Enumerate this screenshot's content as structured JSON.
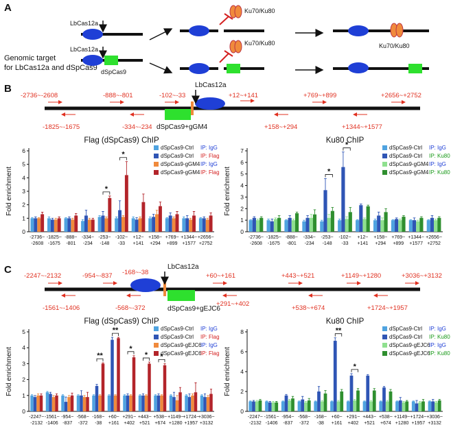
{
  "panel_a": {
    "label": "A",
    "target_text": [
      "Genomic target",
      "for LbCas12a and dSpCas9"
    ],
    "enzyme_labels": [
      "LbCas12a",
      "LbCas12a"
    ],
    "dcas_label": "dSpCas9",
    "ku_labels": [
      "Ku70/Ku80",
      "Ku70/Ku80",
      "Ku70/Ku80"
    ]
  },
  "panel_b": {
    "label": "B",
    "enzyme": "LbCas12a",
    "guide": "dSpCas9+gGM4",
    "regions_top": [
      "-2736~-2608",
      "-888~-801",
      "-102~-33",
      "+12~+141",
      "+769~+899",
      "+2656~+2752"
    ],
    "regions_bottom": [
      "-1825~-1675",
      "-334~-234",
      "+158~+294",
      "+1344~+1577"
    ]
  },
  "panel_c": {
    "label": "C",
    "enzyme": "LbCas12a",
    "guide": "dSpCas9+gEJC6",
    "regions_top": [
      "-2247~-2132",
      "-954~-837",
      "-168~-38",
      "+60~+161",
      "+443~+521",
      "+1149~+1280",
      "+3036~+3132"
    ],
    "regions_bottom": [
      "-1561~-1406",
      "-568~-372",
      "+291~+402",
      "+538~+674",
      "+1724~+1957"
    ]
  },
  "chart_data": [
    {
      "type": "bar",
      "title": "Flag (dSpCas9) ChIP",
      "y_label": "Fold enrichment",
      "categories": [
        "-2736~-2608",
        "-1825~-1675",
        "-888~-801",
        "-334~-234",
        "-253~-148",
        "-102~-33",
        "+12~+141",
        "+158~+294",
        "+769~+899",
        "+1344~+1577",
        "+2656~+2752"
      ],
      "series": [
        {
          "name": "dSpCas9-Ctrl",
          "ip": "IP: IgG",
          "ip_color": "#1f3fd6",
          "color": "#4fa3e0",
          "values": [
            1.0,
            1.0,
            1.0,
            0.8,
            1.1,
            1.0,
            1.0,
            1.0,
            1.0,
            1.0,
            1.0
          ],
          "errors": [
            0.05,
            0.1,
            0.05,
            0.1,
            0.1,
            0.1,
            0.1,
            0.1,
            0.05,
            0.1,
            0.05
          ]
        },
        {
          "name": "dSpCas9-Ctrl",
          "ip": "IP: Flag",
          "ip_color": "#d42020",
          "color": "#2f55b5",
          "values": [
            1.0,
            0.9,
            1.0,
            1.2,
            1.2,
            1.6,
            0.9,
            1.1,
            1.2,
            1.0,
            1.0
          ],
          "errors": [
            0.1,
            0.1,
            0.1,
            0.4,
            0.3,
            0.7,
            0.15,
            0.2,
            0.2,
            0.2,
            0.1
          ]
        },
        {
          "name": "dSpCas9-gGM4",
          "ip": "IP: IgG",
          "ip_color": "#1f3fd6",
          "color": "#f08a3c",
          "values": [
            1.0,
            0.9,
            0.9,
            0.9,
            1.0,
            1.1,
            1.0,
            1.3,
            1.0,
            0.9,
            0.9
          ],
          "errors": [
            0.05,
            0.1,
            0.1,
            0.1,
            0.1,
            0.1,
            0.1,
            0.3,
            0.1,
            0.1,
            0.1
          ]
        },
        {
          "name": "dSpCas9-gGM4",
          "ip": "IP: Flag",
          "ip_color": "#d42020",
          "color": "#b3242a",
          "values": [
            1.3,
            1.0,
            1.2,
            0.9,
            2.5,
            4.2,
            2.2,
            1.9,
            1.3,
            1.2,
            1.2
          ],
          "errors": [
            0.15,
            0.1,
            0.15,
            0.1,
            0.15,
            1.0,
            0.6,
            0.3,
            0.2,
            0.3,
            0.2
          ]
        }
      ],
      "ylim": [
        0,
        6
      ],
      "yticks": [
        0,
        1,
        2,
        3,
        4,
        5,
        6
      ],
      "annotations": [
        {
          "text": "*",
          "category": "-253~-148"
        },
        {
          "text": "*",
          "category": "-102~-33"
        }
      ]
    },
    {
      "type": "bar",
      "title": "Ku80 ChIP",
      "y_label": "Fold enrichment",
      "categories": [
        "-2736~-2608",
        "-1825~-1675",
        "-888~-801",
        "-334~-234",
        "-253~-148",
        "-102~-33",
        "+12~+141",
        "+158~+294",
        "+769~+899",
        "+1344~+1577",
        "+2656~+2752"
      ],
      "series": [
        {
          "name": "dSpCas9-Ctrl",
          "ip": "IP: IgG",
          "ip_color": "#1f3fd6",
          "color": "#4fa3e0",
          "values": [
            1.0,
            1.0,
            1.0,
            0.9,
            0.9,
            1.0,
            1.0,
            1.0,
            1.0,
            1.0,
            1.0
          ],
          "errors": [
            0.05,
            0.1,
            0.05,
            0.1,
            0.1,
            0.1,
            0.05,
            0.1,
            0.05,
            0.05,
            0.05
          ]
        },
        {
          "name": "dSpCas9-Ctrl",
          "ip": "IP: Ku80",
          "ip_color": "#1a9a1a",
          "color": "#2f55b5",
          "values": [
            1.2,
            0.9,
            1.2,
            1.2,
            3.6,
            5.6,
            2.3,
            1.4,
            1.1,
            1.0,
            1.2
          ],
          "errors": [
            0.1,
            0.2,
            0.2,
            0.2,
            1.0,
            1.3,
            0.1,
            0.3,
            0.1,
            0.2,
            0.2
          ]
        },
        {
          "name": "dSpCas9-gGM4",
          "ip": "IP: IgG",
          "ip_color": "#1f3fd6",
          "color": "#8fe08f",
          "values": [
            1.0,
            1.1,
            1.0,
            1.2,
            1.2,
            1.1,
            1.1,
            1.0,
            1.0,
            0.9,
            1.0
          ],
          "errors": [
            0.1,
            0.1,
            0.1,
            0.3,
            0.3,
            0.2,
            0.1,
            0.2,
            0.1,
            0.1,
            0.1
          ]
        },
        {
          "name": "dSpCas9-gGM4",
          "ip": "IP: Ku80",
          "ip_color": "#1a9a1a",
          "color": "#2f8f2f",
          "values": [
            1.2,
            1.2,
            1.6,
            1.5,
            1.8,
            1.7,
            2.2,
            1.7,
            1.3,
            1.2,
            1.2
          ],
          "errors": [
            0.1,
            0.2,
            0.1,
            0.4,
            0.3,
            0.4,
            0.1,
            0.3,
            0.1,
            0.1,
            0.1
          ]
        }
      ],
      "ylim": [
        0,
        7
      ],
      "yticks": [
        0,
        1,
        2,
        3,
        4,
        5,
        6,
        7
      ],
      "annotations": [
        {
          "text": "*",
          "category": "-253~-148"
        },
        {
          "text": "*",
          "category": "-102~-33"
        }
      ]
    },
    {
      "type": "bar",
      "title": "Flag (dSpCas9) ChIP",
      "y_label": "Fold enrichment",
      "categories": [
        "-2247~-2132",
        "-1561~-1406",
        "-954~-837",
        "-568~-372",
        "-168~-38",
        "+60~+161",
        "+291~+402",
        "+443~+521",
        "+538~+674",
        "+1149~+1280",
        "+1724~+1957",
        "+3036~+3132"
      ],
      "series": [
        {
          "name": "dSpCas9-Ctrl",
          "ip": "IP: IgG",
          "ip_color": "#1f3fd6",
          "color": "#4fa3e0",
          "values": [
            1.0,
            1.2,
            1.0,
            1.0,
            1.0,
            1.0,
            1.0,
            1.0,
            1.0,
            1.0,
            1.0,
            1.0
          ],
          "errors": [
            0.05,
            0.05,
            0.05,
            0.05,
            0.05,
            0.05,
            0.05,
            0.05,
            0.05,
            0.05,
            0.05,
            0.05
          ]
        },
        {
          "name": "dSpCas9-Ctrl",
          "ip": "IP: Flag",
          "ip_color": "#d42020",
          "color": "#2f55b5",
          "values": [
            0.9,
            1.1,
            0.6,
            1.0,
            1.6,
            4.5,
            1.0,
            1.0,
            1.0,
            0.9,
            0.9,
            0.9
          ],
          "errors": [
            0.1,
            0.1,
            0.3,
            0.3,
            0.1,
            0.15,
            0.1,
            0.1,
            0.1,
            0.3,
            0.2,
            0.2
          ]
        },
        {
          "name": "dSpCas9-gEJC6",
          "ip": "IP: IgG",
          "ip_color": "#1f3fd6",
          "color": "#f08a3c",
          "values": [
            1.0,
            0.9,
            0.9,
            0.9,
            1.0,
            1.0,
            1.0,
            1.0,
            1.0,
            0.7,
            1.0,
            0.9
          ],
          "errors": [
            0.1,
            0.1,
            0.1,
            0.1,
            0.05,
            0.05,
            0.05,
            0.05,
            0.05,
            0.3,
            0.1,
            0.1
          ]
        },
        {
          "name": "dSpCas9-gEJC6",
          "ip": "IP: Flag",
          "ip_color": "#d42020",
          "color": "#b3242a",
          "values": [
            1.0,
            1.0,
            1.0,
            0.9,
            3.0,
            4.6,
            3.4,
            3.0,
            2.9,
            1.2,
            1.2,
            1.1
          ],
          "errors": [
            0.1,
            0.1,
            0.15,
            0.3,
            0.05,
            0.05,
            0.1,
            0.1,
            0.1,
            0.3,
            0.6,
            0.3
          ]
        }
      ],
      "ylim": [
        0,
        5
      ],
      "yticks": [
        0,
        1,
        2,
        3,
        4,
        5
      ],
      "annotations": [
        {
          "text": "**",
          "category": "-168~-38"
        },
        {
          "text": "**",
          "category": "+60~+161"
        },
        {
          "text": "*",
          "category": "+291~+402"
        },
        {
          "text": "*",
          "category": "+443~+521"
        },
        {
          "text": "*",
          "category": "+538~+674"
        }
      ]
    },
    {
      "type": "bar",
      "title": "Ku80 ChIP",
      "y_label": "Fold enrichment",
      "categories": [
        "-2247~-2132",
        "-1561~-1406",
        "-954~-837",
        "-568~-372",
        "-168~-38",
        "+60~+161",
        "+291~+402",
        "+443~+521",
        "+538~+674",
        "+1149~+1280",
        "+1724~+1957",
        "+3036~+3132"
      ],
      "series": [
        {
          "name": "dSpCas9-Ctrl",
          "ip": "IP: IgG",
          "ip_color": "#1f3fd6",
          "color": "#4fa3e0",
          "values": [
            1.0,
            1.0,
            1.0,
            1.0,
            1.0,
            1.0,
            1.0,
            1.0,
            1.0,
            1.0,
            1.0,
            1.0
          ],
          "errors": [
            0.05,
            0.05,
            0.05,
            0.05,
            0.05,
            0.05,
            0.05,
            0.05,
            0.05,
            0.05,
            0.05,
            0.05
          ]
        },
        {
          "name": "dSpCas9-Ctrl",
          "ip": "IP: Ku80",
          "ip_color": "#1a9a1a",
          "color": "#2f55b5",
          "values": [
            1.0,
            0.9,
            1.6,
            1.2,
            2.0,
            7.1,
            3.6,
            3.6,
            2.4,
            1.1,
            0.8,
            1.0
          ],
          "errors": [
            0.1,
            0.1,
            0.1,
            0.3,
            0.5,
            0.3,
            0.2,
            0.1,
            0.1,
            0.3,
            0.3,
            0.2
          ]
        },
        {
          "name": "dSpCas9-gEJC6",
          "ip": "IP: IgG",
          "ip_color": "#1f3fd6",
          "color": "#8fe08f",
          "values": [
            1.0,
            0.9,
            1.1,
            0.9,
            1.0,
            1.0,
            1.1,
            1.0,
            1.0,
            0.9,
            0.9,
            0.9
          ],
          "errors": [
            0.1,
            0.1,
            0.1,
            0.1,
            0.1,
            0.1,
            0.1,
            0.1,
            0.1,
            0.1,
            0.1,
            0.1
          ]
        },
        {
          "name": "dSpCas9-gEJC6",
          "ip": "IP: Ku80",
          "ip_color": "#1a9a1a",
          "color": "#2f8f2f",
          "values": [
            1.1,
            0.9,
            1.3,
            1.1,
            1.8,
            2.0,
            2.1,
            2.1,
            2.0,
            1.0,
            1.0,
            1.1
          ],
          "errors": [
            0.1,
            0.1,
            0.2,
            0.2,
            0.3,
            0.2,
            0.2,
            0.2,
            0.2,
            0.1,
            0.2,
            0.1
          ]
        }
      ],
      "ylim": [
        0,
        8
      ],
      "yticks": [
        0,
        2,
        4,
        6,
        8
      ],
      "annotations": [
        {
          "text": "**",
          "category": "+60~+161"
        },
        {
          "text": "*",
          "category": "+291~+402"
        }
      ]
    }
  ]
}
